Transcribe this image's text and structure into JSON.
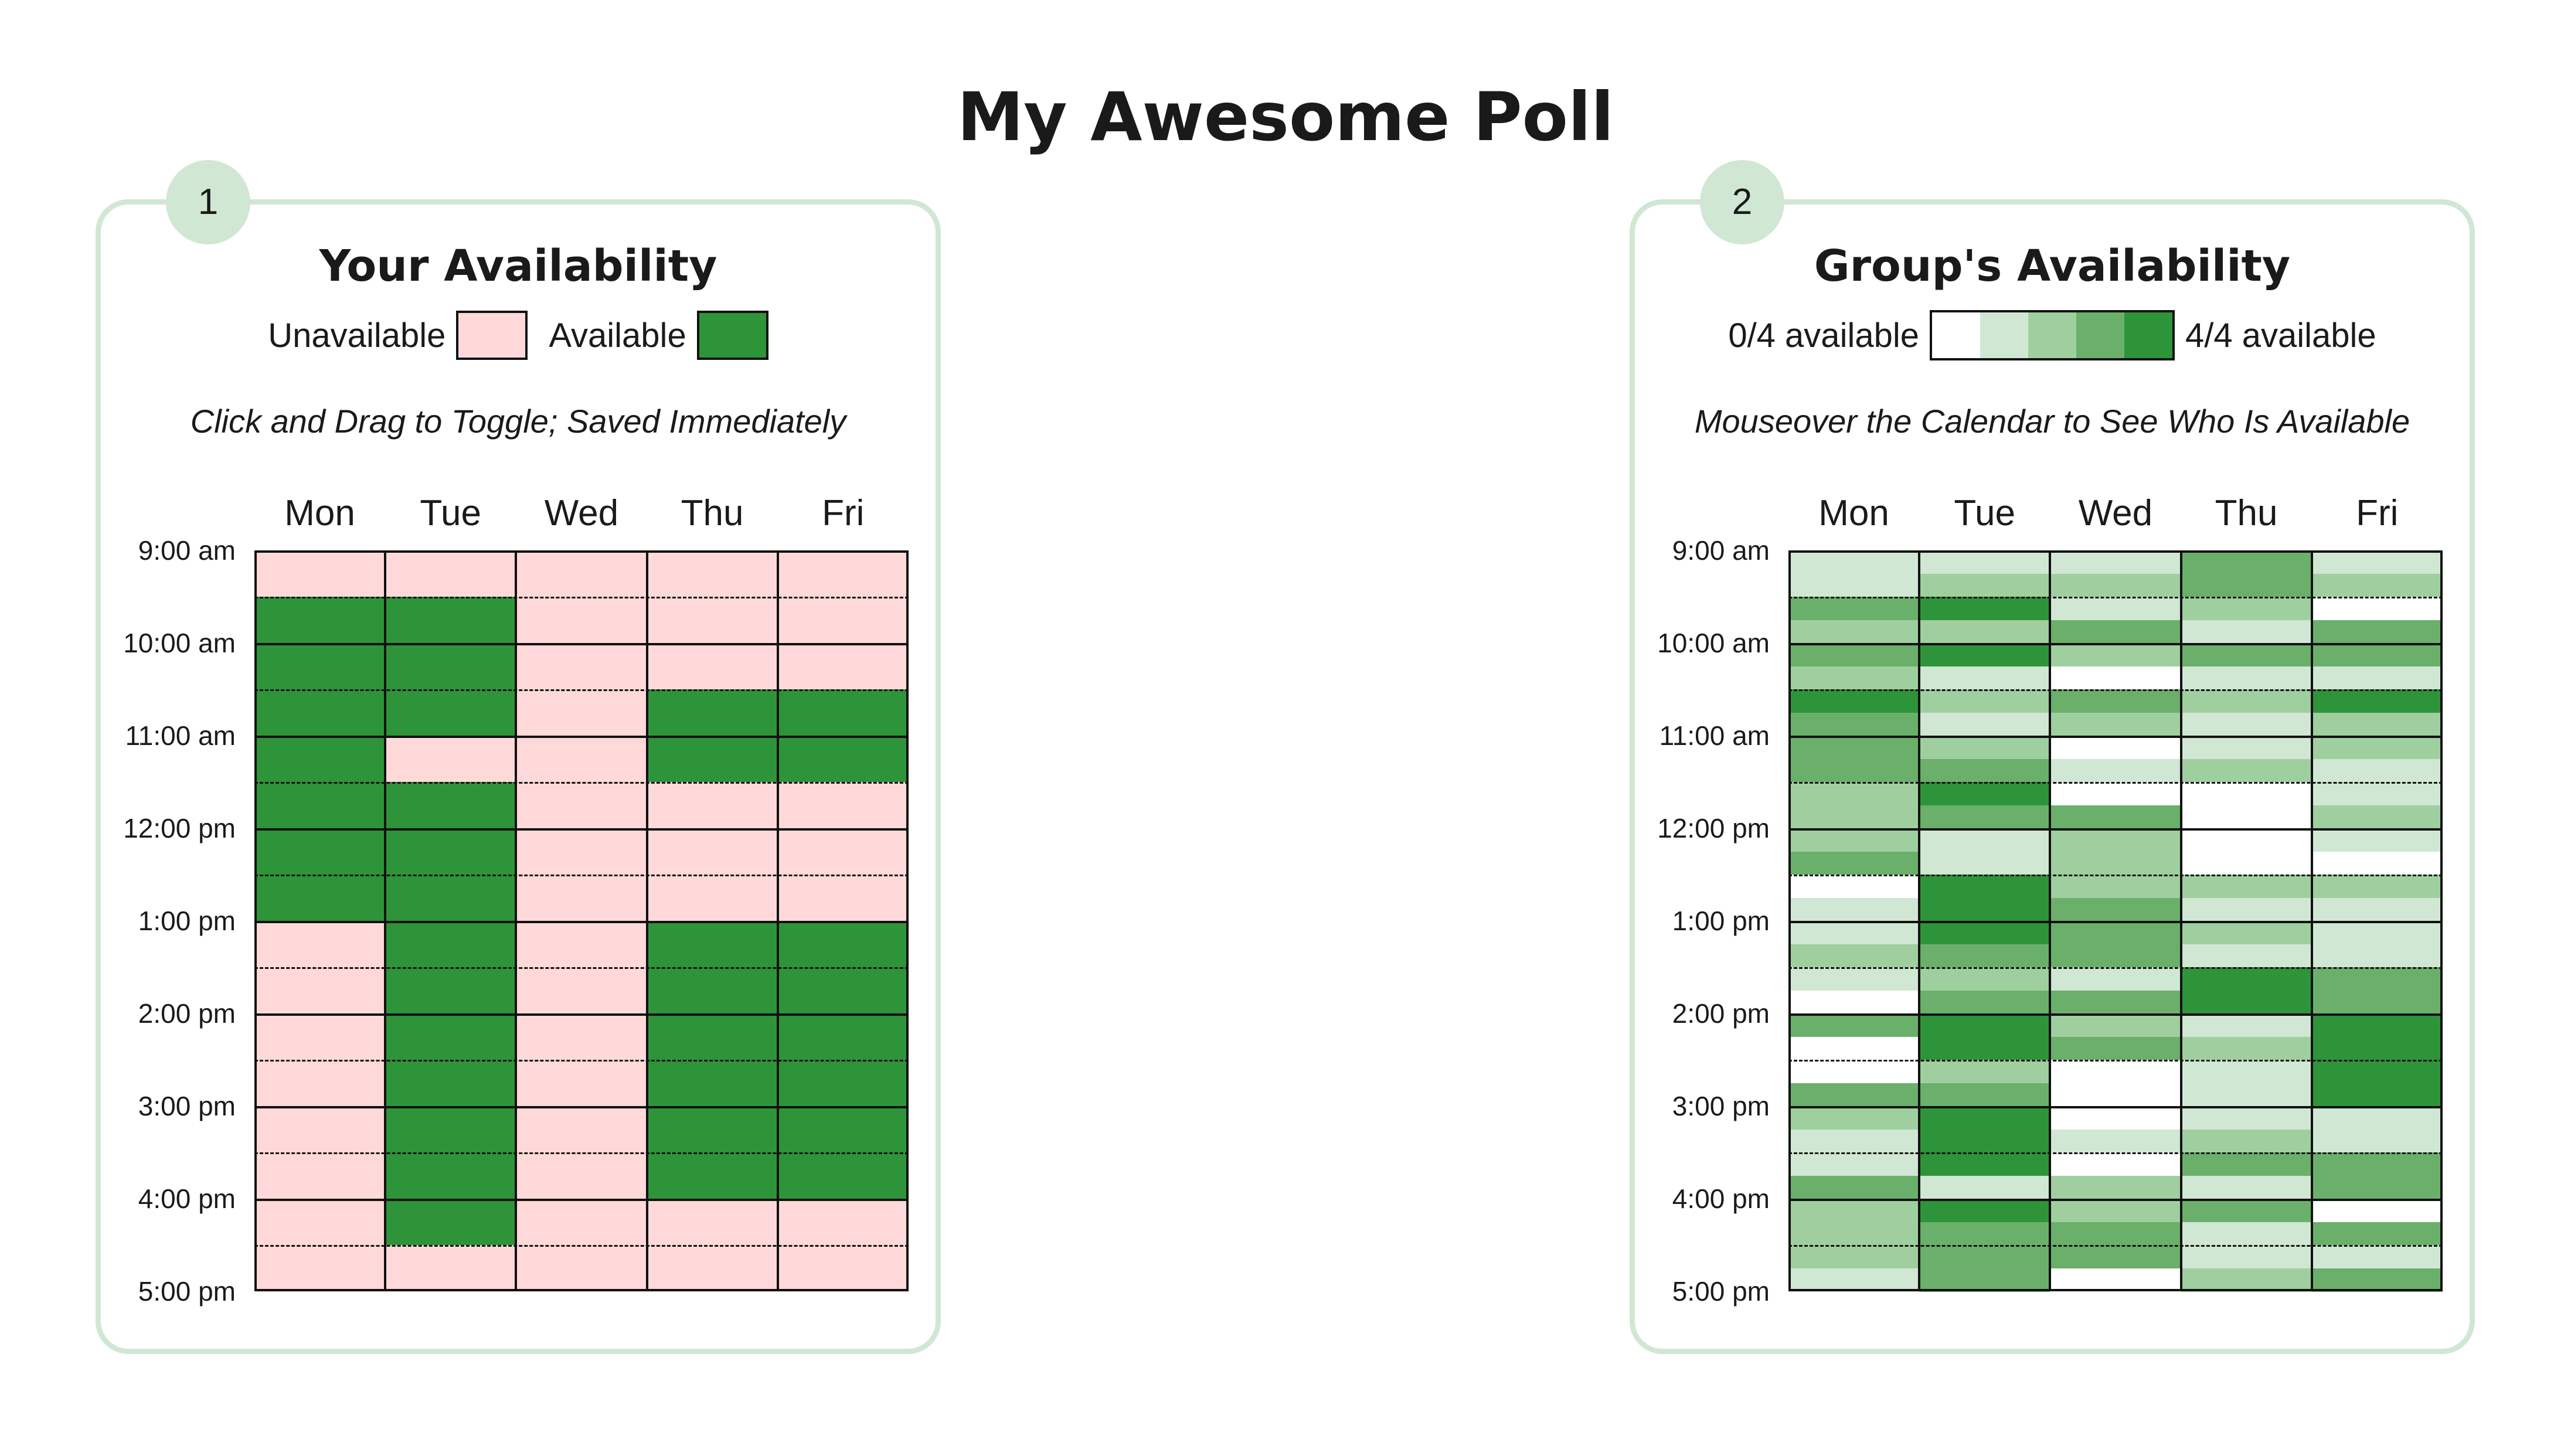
{
  "page": {
    "title": "My Awesome Poll"
  },
  "your_panel": {
    "step": "1",
    "heading": "Your Availability",
    "legend": {
      "unavailable_label": "Unavailable",
      "available_label": "Available"
    },
    "instructions": "Click and Drag to Toggle; Saved Immediately"
  },
  "group_panel": {
    "step": "2",
    "heading": "Group's Availability",
    "legend": {
      "min_label": "0/4 available",
      "max_label": "4/4 available"
    },
    "instructions": "Mouseover the Calendar to See Who Is Available"
  },
  "days": [
    "Mon",
    "Tue",
    "Wed",
    "Thu",
    "Fri"
  ],
  "times": [
    "9:00 am",
    "10:00 am",
    "11:00 am",
    "12:00 pm",
    "1:00 pm",
    "2:00 pm",
    "3:00 pm",
    "4:00 pm",
    "5:00 pm"
  ],
  "colors": {
    "unavailable": "#ffd9d9",
    "available": "#2e9439",
    "scale": [
      "#ffffff",
      "#d0e7d4",
      "#a0cf9f",
      "#6ab06b",
      "#2e9439"
    ],
    "panel_border": "#d0e7d4"
  },
  "your_availability": {
    "Mon": [
      0,
      0,
      1,
      1,
      1,
      1,
      1,
      1,
      1,
      1,
      1,
      1,
      1,
      1,
      1,
      1,
      0,
      0,
      0,
      0,
      0,
      0,
      0,
      0,
      0,
      0,
      0,
      0,
      0,
      0,
      0,
      0
    ],
    "Tue": [
      0,
      0,
      1,
      1,
      1,
      1,
      1,
      1,
      0,
      0,
      1,
      1,
      1,
      1,
      1,
      1,
      1,
      1,
      1,
      1,
      1,
      1,
      1,
      1,
      1,
      1,
      1,
      1,
      1,
      1,
      0,
      0
    ],
    "Wed": [
      0,
      0,
      0,
      0,
      0,
      0,
      0,
      0,
      0,
      0,
      0,
      0,
      0,
      0,
      0,
      0,
      0,
      0,
      0,
      0,
      0,
      0,
      0,
      0,
      0,
      0,
      0,
      0,
      0,
      0,
      0,
      0
    ],
    "Thu": [
      0,
      0,
      0,
      0,
      0,
      0,
      1,
      1,
      1,
      1,
      0,
      0,
      0,
      0,
      0,
      0,
      1,
      1,
      1,
      1,
      1,
      1,
      1,
      1,
      1,
      1,
      1,
      1,
      0,
      0,
      0,
      0
    ],
    "Fri": [
      0,
      0,
      0,
      0,
      0,
      0,
      1,
      1,
      1,
      1,
      0,
      0,
      0,
      0,
      0,
      0,
      1,
      1,
      1,
      1,
      1,
      1,
      1,
      1,
      1,
      1,
      1,
      1,
      0,
      0,
      0,
      0
    ]
  },
  "group_availability": {
    "Mon": [
      1,
      1,
      3,
      2,
      3,
      2,
      4,
      3,
      3,
      3,
      2,
      2,
      2,
      3,
      0,
      1,
      1,
      2,
      1,
      0,
      3,
      0,
      0,
      3,
      2,
      1,
      1,
      3,
      2,
      2,
      2,
      1
    ],
    "Tue": [
      1,
      2,
      4,
      2,
      4,
      1,
      2,
      1,
      2,
      3,
      4,
      3,
      1,
      1,
      4,
      4,
      4,
      3,
      2,
      3,
      4,
      4,
      2,
      3,
      4,
      4,
      4,
      1,
      4,
      3,
      3,
      3
    ],
    "Wed": [
      1,
      2,
      1,
      3,
      2,
      0,
      3,
      2,
      0,
      1,
      0,
      3,
      2,
      2,
      2,
      3,
      3,
      3,
      1,
      3,
      2,
      3,
      0,
      0,
      0,
      1,
      0,
      2,
      2,
      3,
      3,
      0
    ],
    "Thu": [
      3,
      3,
      2,
      1,
      3,
      1,
      2,
      1,
      1,
      2,
      0,
      0,
      0,
      0,
      2,
      1,
      2,
      1,
      4,
      4,
      1,
      2,
      1,
      1,
      1,
      2,
      3,
      1,
      3,
      1,
      1,
      2
    ],
    "Fri": [
      1,
      2,
      0,
      3,
      3,
      1,
      4,
      2,
      2,
      1,
      1,
      2,
      1,
      0,
      2,
      1,
      1,
      1,
      3,
      3,
      4,
      4,
      4,
      4,
      1,
      1,
      3,
      3,
      0,
      3,
      1,
      3
    ]
  }
}
